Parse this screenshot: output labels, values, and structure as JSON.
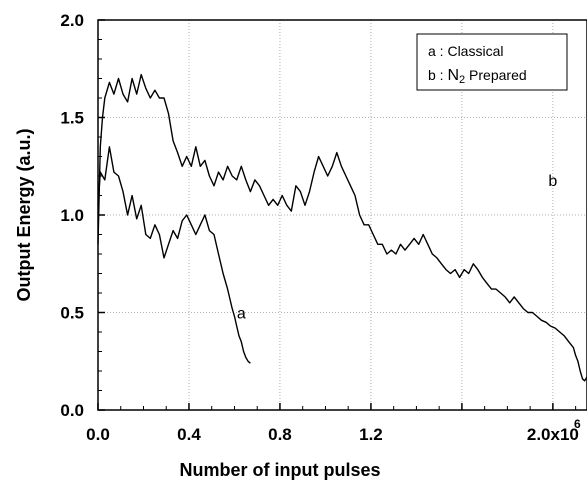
{
  "chart_data": {
    "type": "line",
    "title": "",
    "xlabel": "Number of input pulses",
    "ylabel": "Output Energy (a.u.)",
    "xlim": [
      0,
      2.15
    ],
    "ylim": [
      0,
      2.0
    ],
    "x_ticks": [
      {
        "value": 0.0,
        "label": "0.0"
      },
      {
        "value": 0.4,
        "label": "0.4"
      },
      {
        "value": 0.8,
        "label": "0.8"
      },
      {
        "value": 1.2,
        "label": "1.2"
      },
      {
        "value": 1.6,
        "label": ""
      },
      {
        "value": 2.0,
        "label": "2.0x10"
      }
    ],
    "x_exponent": "6",
    "y_ticks": [
      {
        "value": 0.0,
        "label": "0.0"
      },
      {
        "value": 0.5,
        "label": "0.5"
      },
      {
        "value": 1.0,
        "label": "1.0"
      },
      {
        "value": 1.5,
        "label": "1.5"
      },
      {
        "value": 2.0,
        "label": "2.0"
      }
    ],
    "grid": true,
    "legend_position": "top-right",
    "legend": {
      "a": "a : Classical",
      "b_prefix": "b : ",
      "b_main": "N",
      "b_sub": "2",
      "b_suffix": " Prepared"
    },
    "series": [
      {
        "id": "a",
        "label": "a",
        "color": "#000000",
        "points": [
          [
            0.0,
            1.05
          ],
          [
            0.01,
            1.22
          ],
          [
            0.03,
            1.18
          ],
          [
            0.05,
            1.35
          ],
          [
            0.07,
            1.22
          ],
          [
            0.09,
            1.2
          ],
          [
            0.11,
            1.12
          ],
          [
            0.13,
            1.0
          ],
          [
            0.15,
            1.1
          ],
          [
            0.17,
            0.98
          ],
          [
            0.19,
            1.05
          ],
          [
            0.21,
            0.9
          ],
          [
            0.23,
            0.88
          ],
          [
            0.25,
            0.95
          ],
          [
            0.27,
            0.9
          ],
          [
            0.29,
            0.78
          ],
          [
            0.31,
            0.85
          ],
          [
            0.33,
            0.92
          ],
          [
            0.35,
            0.88
          ],
          [
            0.37,
            0.97
          ],
          [
            0.39,
            1.0
          ],
          [
            0.41,
            0.95
          ],
          [
            0.43,
            0.9
          ],
          [
            0.45,
            0.95
          ],
          [
            0.47,
            1.0
          ],
          [
            0.49,
            0.92
          ],
          [
            0.51,
            0.9
          ],
          [
            0.53,
            0.8
          ],
          [
            0.55,
            0.7
          ],
          [
            0.57,
            0.62
          ],
          [
            0.58,
            0.57
          ],
          [
            0.59,
            0.52
          ],
          [
            0.6,
            0.48
          ],
          [
            0.61,
            0.43
          ],
          [
            0.62,
            0.38
          ],
          [
            0.63,
            0.35
          ],
          [
            0.64,
            0.3
          ],
          [
            0.65,
            0.27
          ],
          [
            0.66,
            0.25
          ],
          [
            0.67,
            0.24
          ]
        ]
      },
      {
        "id": "b",
        "label": "b",
        "color": "#000000",
        "points": [
          [
            0.0,
            0.85
          ],
          [
            0.01,
            1.35
          ],
          [
            0.02,
            1.5
          ],
          [
            0.03,
            1.6
          ],
          [
            0.05,
            1.68
          ],
          [
            0.07,
            1.62
          ],
          [
            0.09,
            1.7
          ],
          [
            0.11,
            1.62
          ],
          [
            0.13,
            1.58
          ],
          [
            0.15,
            1.7
          ],
          [
            0.17,
            1.62
          ],
          [
            0.19,
            1.72
          ],
          [
            0.21,
            1.65
          ],
          [
            0.23,
            1.6
          ],
          [
            0.25,
            1.64
          ],
          [
            0.27,
            1.6
          ],
          [
            0.29,
            1.6
          ],
          [
            0.31,
            1.52
          ],
          [
            0.33,
            1.38
          ],
          [
            0.35,
            1.32
          ],
          [
            0.37,
            1.25
          ],
          [
            0.39,
            1.3
          ],
          [
            0.41,
            1.25
          ],
          [
            0.43,
            1.35
          ],
          [
            0.45,
            1.25
          ],
          [
            0.47,
            1.28
          ],
          [
            0.49,
            1.2
          ],
          [
            0.51,
            1.15
          ],
          [
            0.53,
            1.22
          ],
          [
            0.55,
            1.18
          ],
          [
            0.57,
            1.25
          ],
          [
            0.59,
            1.2
          ],
          [
            0.61,
            1.18
          ],
          [
            0.63,
            1.25
          ],
          [
            0.65,
            1.18
          ],
          [
            0.67,
            1.12
          ],
          [
            0.69,
            1.18
          ],
          [
            0.71,
            1.15
          ],
          [
            0.73,
            1.1
          ],
          [
            0.75,
            1.05
          ],
          [
            0.77,
            1.08
          ],
          [
            0.79,
            1.05
          ],
          [
            0.81,
            1.1
          ],
          [
            0.83,
            1.05
          ],
          [
            0.85,
            1.02
          ],
          [
            0.87,
            1.15
          ],
          [
            0.89,
            1.12
          ],
          [
            0.91,
            1.05
          ],
          [
            0.93,
            1.12
          ],
          [
            0.95,
            1.22
          ],
          [
            0.97,
            1.3
          ],
          [
            0.99,
            1.25
          ],
          [
            1.01,
            1.2
          ],
          [
            1.03,
            1.25
          ],
          [
            1.05,
            1.32
          ],
          [
            1.07,
            1.25
          ],
          [
            1.09,
            1.2
          ],
          [
            1.11,
            1.15
          ],
          [
            1.13,
            1.1
          ],
          [
            1.15,
            1.0
          ],
          [
            1.17,
            0.95
          ],
          [
            1.19,
            0.95
          ],
          [
            1.21,
            0.9
          ],
          [
            1.23,
            0.85
          ],
          [
            1.25,
            0.85
          ],
          [
            1.27,
            0.8
          ],
          [
            1.29,
            0.82
          ],
          [
            1.31,
            0.8
          ],
          [
            1.33,
            0.85
          ],
          [
            1.35,
            0.82
          ],
          [
            1.37,
            0.85
          ],
          [
            1.39,
            0.88
          ],
          [
            1.41,
            0.85
          ],
          [
            1.43,
            0.9
          ],
          [
            1.45,
            0.85
          ],
          [
            1.47,
            0.8
          ],
          [
            1.49,
            0.78
          ],
          [
            1.51,
            0.75
          ],
          [
            1.53,
            0.72
          ],
          [
            1.55,
            0.7
          ],
          [
            1.57,
            0.72
          ],
          [
            1.59,
            0.68
          ],
          [
            1.61,
            0.72
          ],
          [
            1.63,
            0.7
          ],
          [
            1.65,
            0.75
          ],
          [
            1.67,
            0.72
          ],
          [
            1.69,
            0.68
          ],
          [
            1.71,
            0.65
          ],
          [
            1.73,
            0.62
          ],
          [
            1.75,
            0.62
          ],
          [
            1.77,
            0.6
          ],
          [
            1.79,
            0.58
          ],
          [
            1.81,
            0.55
          ],
          [
            1.83,
            0.58
          ],
          [
            1.85,
            0.55
          ],
          [
            1.87,
            0.52
          ],
          [
            1.89,
            0.5
          ],
          [
            1.91,
            0.5
          ],
          [
            1.93,
            0.48
          ],
          [
            1.95,
            0.46
          ],
          [
            1.97,
            0.45
          ],
          [
            1.99,
            0.43
          ],
          [
            2.01,
            0.42
          ],
          [
            2.03,
            0.4
          ],
          [
            2.05,
            0.38
          ],
          [
            2.07,
            0.35
          ],
          [
            2.09,
            0.32
          ],
          [
            2.1,
            0.28
          ],
          [
            2.11,
            0.25
          ],
          [
            2.12,
            0.2
          ],
          [
            2.13,
            0.16
          ],
          [
            2.14,
            0.15
          ],
          [
            2.15,
            0.17
          ]
        ]
      }
    ],
    "annotations": [
      {
        "text": "a",
        "x": 0.63,
        "y": 0.47
      },
      {
        "text": "b",
        "x": 2.0,
        "y": 1.15
      }
    ]
  }
}
